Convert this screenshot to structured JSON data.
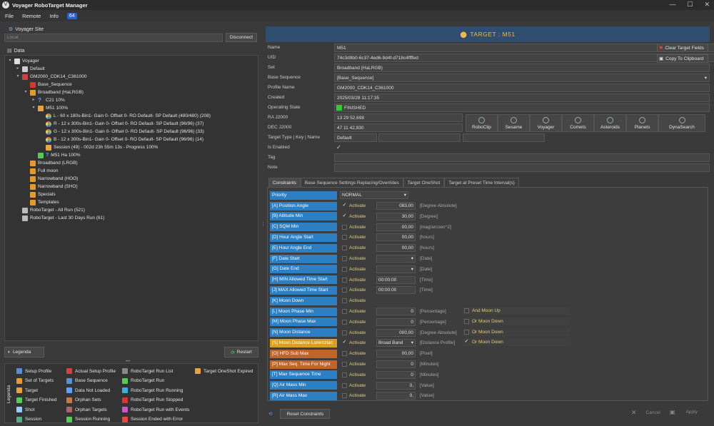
{
  "window": {
    "title": "Voyager RoboTarget Manager",
    "controls": [
      "—",
      "☐",
      "✕"
    ]
  },
  "menu": {
    "items": [
      "File",
      "Remote",
      "Info"
    ],
    "badge": "64"
  },
  "left": {
    "site_label": "Voyager Site",
    "site_value": "Local",
    "disconnect": "Disconnect",
    "data_label": "Data",
    "tree": [
      {
        "t": "Voyager",
        "d": 0,
        "ico": "voyager"
      },
      {
        "t": "Default",
        "d": 1,
        "ico": "gear"
      },
      {
        "t": "GM2000_CDK14_C361000",
        "d": 1,
        "ico": "profile"
      },
      {
        "t": "Base_Sequence",
        "d": 2,
        "ico": "seq"
      },
      {
        "t": "Broadband (HaLRGB)",
        "d": 2,
        "ico": "set"
      },
      {
        "t": "C21      10%",
        "d": 3,
        "ico": "q"
      },
      {
        "t": "M51      100%",
        "d": 3,
        "ico": "target"
      },
      {
        "t": "L - 60 x 180s-Bin1- Gain 0- Offset 0- RO Default- SP Default     (480/480) (208)",
        "d": 4,
        "ico": "shot"
      },
      {
        "t": "R - 12 x 300s-Bin1- Gain 0- Offset 0- RO Default- SP Default     (96/96) (37)",
        "d": 4,
        "ico": "shot"
      },
      {
        "t": "G - 12 x 300s-Bin1- Gain 0- Offset 0- RO Default- SP Default     (96/96) (33)",
        "d": 4,
        "ico": "shot"
      },
      {
        "t": "B - 12 x 300s-Bin1- Gain 0- Offset 0- RO Default- SP Default     (96/96) (14)",
        "d": 4,
        "ico": "shot"
      },
      {
        "t": "Session   (49) -  002d 23h 55m 13s  - Progress 100%",
        "d": 4,
        "ico": "session"
      },
      {
        "t": "M51 Ha        100%",
        "d": 3,
        "ico": "finished"
      },
      {
        "t": "Broadband (LRGB)",
        "d": 2,
        "ico": "set"
      },
      {
        "t": "Full moon",
        "d": 2,
        "ico": "set"
      },
      {
        "t": "Narrowband (HOO)",
        "d": 2,
        "ico": "set"
      },
      {
        "t": "Narrowband (SHO)",
        "d": 2,
        "ico": "set"
      },
      {
        "t": "Specials",
        "d": 2,
        "ico": "set"
      },
      {
        "t": "Templates",
        "d": 2,
        "ico": "set"
      },
      {
        "t": "RoboTarget - All Run (521)",
        "d": 1,
        "ico": "run"
      },
      {
        "t": "RoboTarget - Last 30 Days Run (61)",
        "d": 1,
        "ico": "run"
      }
    ],
    "legenda": "Legenda",
    "restart": "Restart",
    "legend_side": "Legenda",
    "legend": [
      [
        "Setup Profile",
        "Actual Setup Profile",
        "RoboTarget Run List",
        "Target OneShot Expired"
      ],
      [
        "Set of Targets",
        "Base Sequence",
        "RoboTarget Run",
        ""
      ],
      [
        "Target",
        "Data Not Loaded",
        "RoboTarget Run Running",
        ""
      ],
      [
        "Target Finished",
        "Orphan Sets",
        "RoboTarget Run Stopped",
        ""
      ],
      [
        "Shot",
        "Orphan Targets",
        "RoboTarget Run with Events",
        ""
      ],
      [
        "Session",
        "Session Running",
        "Session Ended with Error",
        ""
      ]
    ]
  },
  "right": {
    "header": "TARGET : M51",
    "fields": {
      "name_l": "Name",
      "name_v": "M51",
      "uid_l": "UID",
      "uid_v": "74c3d9b0-6c37-4ed6-9d4f-d718c4ffffed",
      "set_l": "Set",
      "set_v": "Broadband (HaLRGB)",
      "bs_l": "Base Sequence",
      "bs_v": "[Base_Sequence]",
      "pn_l": "Profile Name",
      "pn_v": "GM2000_CDK14_C361000",
      "cr_l": "Created",
      "cr_v": "2025/03/28 11:17:35",
      "os_l": "Operating State",
      "os_v": "FINISHED",
      "ra_l": "RA J2000",
      "ra_v": "13 29 52,698",
      "dec_l": "DEC J2000",
      "dec_v": "47 11 42,930",
      "tt_l": "Target Type | Key | Name",
      "tt_v": "Default",
      "en_l": "Is Enabled",
      "tag_l": "Tag",
      "note_l": "Note"
    },
    "clear_btn": "Clear Target Fields",
    "copy_btn": "Copy To Clipboard",
    "tools": [
      "RoboClip",
      "Sesame",
      "Voyager",
      "Comets",
      "Asteroids",
      "Planets",
      "DynaSearch"
    ],
    "tabs": [
      "Constraints",
      "Base Sequence Settings Replacing/Overrides",
      "Target OneShot",
      "Target at Preset Time Interval(s)"
    ],
    "priority_label": "Priority",
    "priority_value": "NORMAL",
    "constraints": [
      {
        "n": "[A] Position Angle",
        "c": "#2d7fc4",
        "chk": true,
        "v": "083,00",
        "u": "[Degree Absolute]",
        "dd": false
      },
      {
        "n": "[B] Altitude Min",
        "c": "#2d7fc4",
        "chk": true,
        "v": "30,00",
        "u": "[Degree]",
        "dd": false
      },
      {
        "n": "[C] SQM Min",
        "c": "#2d7fc4",
        "chk": false,
        "v": "00,00",
        "u": "[mag/arcsec^2]",
        "dd": false
      },
      {
        "n": "[D] Hour Angle Start",
        "c": "#2d7fc4",
        "chk": false,
        "v": "00,00",
        "u": "[hours]",
        "dd": false
      },
      {
        "n": "[E] Hour Angle End",
        "c": "#2d7fc4",
        "chk": false,
        "v": "00,00",
        "u": "[hours]",
        "dd": false
      },
      {
        "n": "[F] Date Start",
        "c": "#2d7fc4",
        "chk": false,
        "v": "",
        "u": "[Date]",
        "dd": true
      },
      {
        "n": "[G] Date End",
        "c": "#2d7fc4",
        "chk": false,
        "v": "",
        "u": "[Date]",
        "dd": true
      },
      {
        "n": "[H] MIN Allowed Time Start",
        "c": "#2d7fc4",
        "chk": false,
        "v": "00:00:00",
        "u": "[Time]",
        "dd": false
      },
      {
        "n": "[J] MAX Allowed Time Start",
        "c": "#2d7fc4",
        "chk": false,
        "v": "00:00:00",
        "u": "[Time]",
        "dd": false
      },
      {
        "n": "[K] Moon Down",
        "c": "#2d7fc4",
        "chk": false,
        "v": null,
        "u": "",
        "dd": false
      },
      {
        "n": "[L] Moon Phase Min",
        "c": "#2d7fc4",
        "chk": false,
        "v": "0",
        "u": "[Percentage]",
        "dd": false,
        "x": "And Moon Up",
        "xc": false
      },
      {
        "n": "[M] Moon Phase Max",
        "c": "#2d7fc4",
        "chk": false,
        "v": "0",
        "u": "[Percentage]",
        "dd": false,
        "x": "Or Moon Down",
        "xc": false
      },
      {
        "n": "[N] Moon Distance",
        "c": "#2d7fc4",
        "chk": false,
        "v": "000,00",
        "u": "[Degree Absolute]",
        "dd": false,
        "x": "Or Moon Down",
        "xc": false
      },
      {
        "n": "[S] Moon Distance Lorentzian",
        "c": "#d9a020",
        "chk": true,
        "v": "Broad Band",
        "u": "[Distance Profile]",
        "dd": true,
        "x": "Or Moon Down",
        "xc": true
      },
      {
        "n": "[O] HFD Sub Max",
        "c": "#c0642a",
        "chk": false,
        "v": "00,00",
        "u": "[Pixel]",
        "dd": false
      },
      {
        "n": "[P] Max Seq. Time For Night",
        "c": "#c0642a",
        "chk": false,
        "v": "0",
        "u": "[Minutes]",
        "dd": false
      },
      {
        "n": "[T] Max Sequence Time",
        "c": "#2d7fc4",
        "chk": false,
        "v": "0",
        "u": "[Minutes]",
        "dd": false
      },
      {
        "n": "[Q] Air Mass Min",
        "c": "#2d7fc4",
        "chk": false,
        "v": "0,",
        "u": "[Value]",
        "dd": false
      },
      {
        "n": "[R] Air Mass Max",
        "c": "#2d7fc4",
        "chk": false,
        "v": "0,",
        "u": "[Value]",
        "dd": false
      }
    ],
    "activate": "Activate",
    "reset": "Reset Constraints",
    "cancel": "Cancel",
    "apply": "Apply"
  }
}
